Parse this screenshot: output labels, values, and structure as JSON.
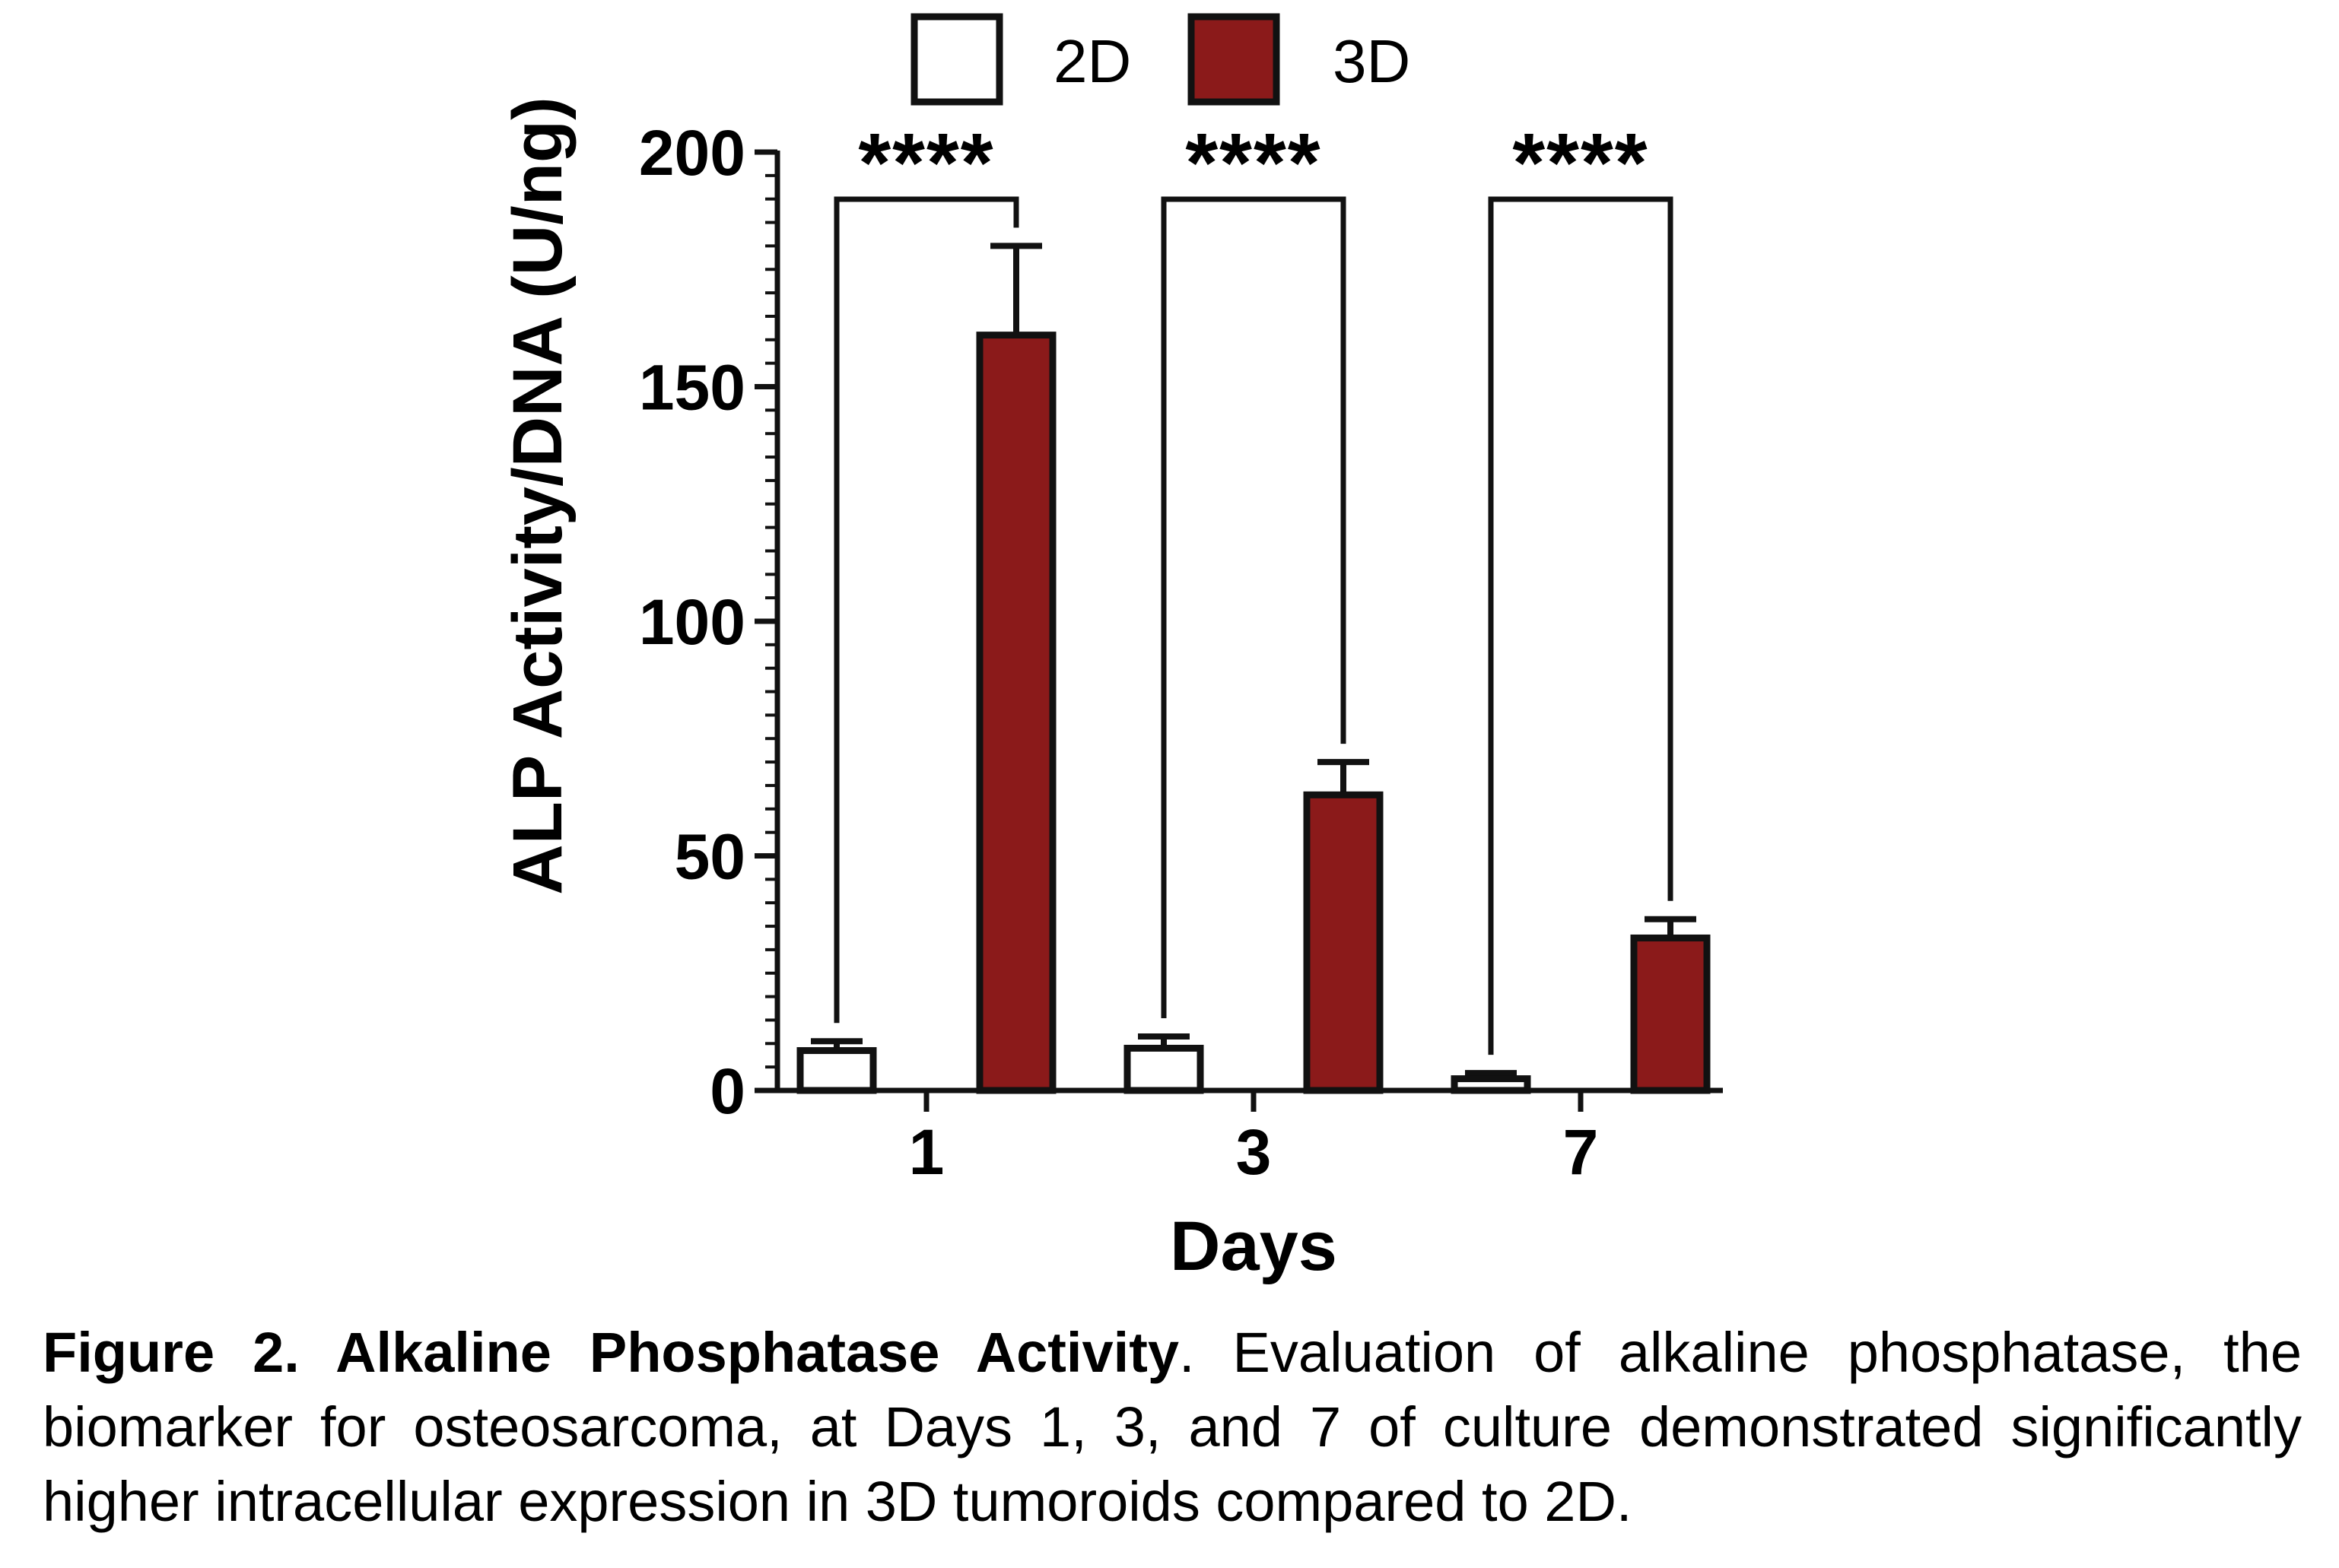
{
  "chart_data": {
    "type": "bar",
    "xlabel": "Days",
    "ylabel": "ALP Activity/DNA (U/ng)",
    "categories": [
      "1",
      "3",
      "7"
    ],
    "ylim": [
      0,
      200
    ],
    "y_ticks": [
      "0",
      "50",
      "100",
      "150",
      "200"
    ],
    "series": [
      {
        "name": "2D",
        "color": "#ffffff",
        "values": [
          8.5,
          9,
          2.5
        ],
        "errors": [
          2,
          2.5,
          1.2
        ]
      },
      {
        "name": "3D",
        "color": "#8b1a1a",
        "values": [
          161,
          63,
          32.5
        ],
        "errors": [
          19,
          7,
          4
        ]
      }
    ],
    "significance": [
      "****",
      "****",
      "****"
    ],
    "legend_position": "top"
  },
  "caption": {
    "bold": "Figure 2. Alkaline Phosphatase Activity",
    "text": ". Evaluation of alkaline phosphatase, the biomarker for osteosarcoma, at Days 1, 3, and 7 of culture demonstrated significantly higher intracellular expression in 3D tumoroids compared to 2D."
  }
}
